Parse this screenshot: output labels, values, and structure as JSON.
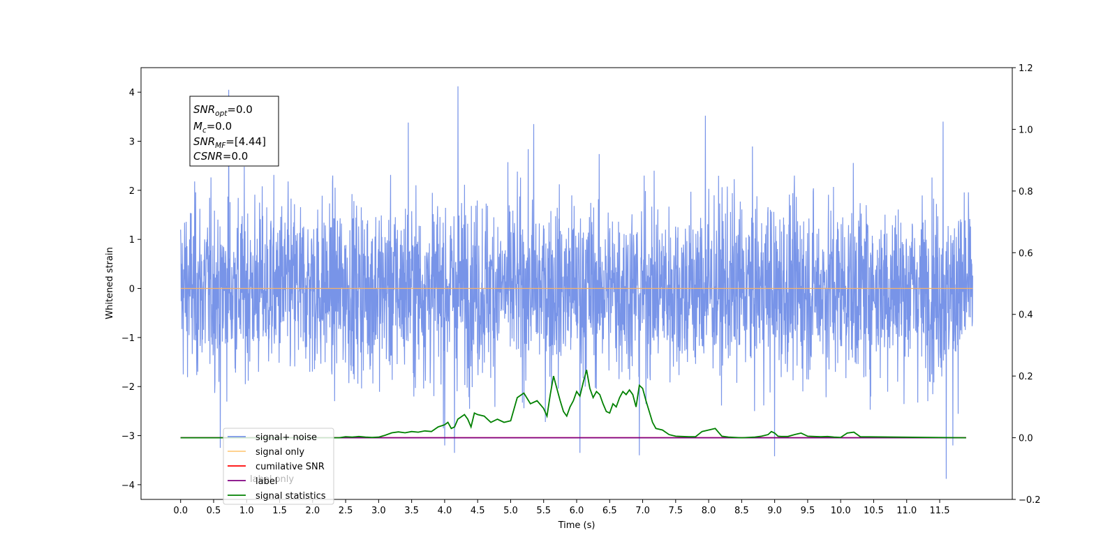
{
  "chart_data": {
    "type": "line",
    "xlabel": "Time (s)",
    "ylabel": "Whitened strain",
    "xlim": [
      -0.6,
      12.6
    ],
    "ylim_left": [
      -4.3,
      4.5
    ],
    "ylim_right": [
      -0.2,
      1.2
    ],
    "x_ticks": [
      0.0,
      0.5,
      1.0,
      1.5,
      2.0,
      2.5,
      3.0,
      3.5,
      4.0,
      4.5,
      5.0,
      5.5,
      6.0,
      6.5,
      7.0,
      7.5,
      8.0,
      8.5,
      9.0,
      9.5,
      10.0,
      10.5,
      11.0,
      11.5
    ],
    "x_tick_labels": [
      "0.0",
      "0.5",
      "1.0",
      "1.5",
      "2.0",
      "2.5",
      "3.0",
      "3.5",
      "4.0",
      "4.5",
      "5.0",
      "5.5",
      "6.0",
      "6.5",
      "7.0",
      "7.5",
      "8.0",
      "8.5",
      "9.0",
      "9.5",
      "10.0",
      "10.5",
      "11.0",
      "11.5"
    ],
    "y_left_ticks": [
      -4,
      -3,
      -2,
      -1,
      0,
      1,
      2,
      3,
      4
    ],
    "y_left_tick_labels": [
      "−4",
      "−3",
      "−2",
      "−1",
      "0",
      "1",
      "2",
      "3",
      "4"
    ],
    "y_right_ticks": [
      -0.2,
      0.0,
      0.2,
      0.4,
      0.6,
      0.8,
      1.0,
      1.2
    ],
    "y_right_tick_labels": [
      "−0.2",
      "0.0",
      "0.2",
      "0.4",
      "0.6",
      "0.8",
      "1.0",
      "1.2"
    ],
    "grid": false,
    "legend_position": "bottom-left",
    "noise_series": {
      "name": "signal+ noise",
      "axis": "left",
      "x_start": 0.0,
      "x_end": 12.0,
      "points": 3000,
      "std": 0.9,
      "peaks": [
        {
          "x": 0.73,
          "y": 4.05
        },
        {
          "x": 4.2,
          "y": 4.12
        },
        {
          "x": 7.95,
          "y": 3.52
        },
        {
          "x": 11.55,
          "y": 3.4
        },
        {
          "x": 5.35,
          "y": 3.35
        },
        {
          "x": 3.45,
          "y": 3.38
        }
      ],
      "troughs": [
        {
          "x": 0.6,
          "y": -3.25
        },
        {
          "x": 4.0,
          "y": -3.2
        },
        {
          "x": 4.15,
          "y": -3.35
        },
        {
          "x": 6.05,
          "y": -3.35
        },
        {
          "x": 6.95,
          "y": -3.4
        },
        {
          "x": 9.0,
          "y": -3.42
        },
        {
          "x": 11.6,
          "y": -3.88
        },
        {
          "x": 11.7,
          "y": -3.2
        }
      ]
    },
    "series": [
      {
        "name": "signal only",
        "axis": "left",
        "x": [
          0.0,
          12.0
        ],
        "y": [
          0.0,
          0.0
        ]
      },
      {
        "name": "cumilative SNR",
        "axis": "right",
        "x": [
          0.0,
          11.9
        ],
        "y": [
          0.0,
          0.0
        ]
      },
      {
        "name": "label",
        "axis": "right",
        "x": [
          0.0,
          11.9
        ],
        "y": [
          0.0,
          0.0
        ]
      },
      {
        "name": "signal statistics",
        "axis": "right",
        "x": [
          0.0,
          2.4,
          2.5,
          2.6,
          2.7,
          2.8,
          2.9,
          3.0,
          3.1,
          3.2,
          3.3,
          3.4,
          3.5,
          3.6,
          3.7,
          3.8,
          3.9,
          4.0,
          4.05,
          4.1,
          4.15,
          4.2,
          4.3,
          4.35,
          4.4,
          4.45,
          4.5,
          4.6,
          4.7,
          4.8,
          4.9,
          5.0,
          5.1,
          5.2,
          5.3,
          5.4,
          5.5,
          5.55,
          5.6,
          5.65,
          5.7,
          5.75,
          5.8,
          5.85,
          5.9,
          5.95,
          6.0,
          6.05,
          6.1,
          6.15,
          6.2,
          6.25,
          6.3,
          6.35,
          6.4,
          6.45,
          6.5,
          6.55,
          6.6,
          6.65,
          6.7,
          6.75,
          6.8,
          6.85,
          6.9,
          6.95,
          7.0,
          7.05,
          7.1,
          7.15,
          7.2,
          7.3,
          7.4,
          7.5,
          7.6,
          7.7,
          7.8,
          7.9,
          8.0,
          8.1,
          8.2,
          8.3,
          8.4,
          8.5,
          8.6,
          8.7,
          8.8,
          8.9,
          8.95,
          9.0,
          9.05,
          9.1,
          9.2,
          9.3,
          9.4,
          9.5,
          9.6,
          9.7,
          9.8,
          9.9,
          10.0,
          10.1,
          10.2,
          10.3,
          11.9
        ],
        "y": [
          0.0,
          0.0,
          0.003,
          0.002,
          0.004,
          0.002,
          0.001,
          0.002,
          0.008,
          0.016,
          0.019,
          0.016,
          0.02,
          0.018,
          0.022,
          0.02,
          0.035,
          0.042,
          0.05,
          0.03,
          0.035,
          0.06,
          0.075,
          0.06,
          0.035,
          0.08,
          0.075,
          0.07,
          0.05,
          0.06,
          0.05,
          0.055,
          0.13,
          0.145,
          0.11,
          0.12,
          0.095,
          0.07,
          0.14,
          0.2,
          0.16,
          0.12,
          0.085,
          0.07,
          0.1,
          0.12,
          0.15,
          0.135,
          0.18,
          0.22,
          0.16,
          0.13,
          0.15,
          0.14,
          0.11,
          0.085,
          0.08,
          0.11,
          0.1,
          0.13,
          0.15,
          0.14,
          0.155,
          0.14,
          0.1,
          0.17,
          0.16,
          0.12,
          0.085,
          0.05,
          0.03,
          0.025,
          0.01,
          0.005,
          0.004,
          0.003,
          0.003,
          0.02,
          0.025,
          0.03,
          0.005,
          0.002,
          0.001,
          0.0,
          0.001,
          0.002,
          0.005,
          0.01,
          0.02,
          0.015,
          0.005,
          0.004,
          0.004,
          0.01,
          0.015,
          0.005,
          0.004,
          0.003,
          0.004,
          0.002,
          0.001,
          0.015,
          0.018,
          0.003,
          0.0
        ]
      }
    ],
    "legend": [
      {
        "label": "signal+ noise",
        "color": "#7894e8"
      },
      {
        "label": "signal only",
        "color": "#ffcc80"
      },
      {
        "label": "cumilative SNR",
        "color": "#ff0000"
      },
      {
        "label": "label",
        "color": "#800080"
      },
      {
        "label": "signal statistics",
        "color": "#008000"
      }
    ],
    "hidden_legend_text": {
      "label": "label only"
    },
    "annotation": {
      "lines": [
        {
          "base": "SNR",
          "sub": "opt",
          "value": "=0.0"
        },
        {
          "base": "M",
          "sub": "c",
          "value": "=0.0"
        },
        {
          "base": "SNR",
          "sub": "MF",
          "value": "=[4.44]"
        },
        {
          "base": "CSNR",
          "sub": "",
          "value": "=0.0"
        }
      ]
    },
    "colors": {
      "noise": "#7894e8",
      "signal_only": "#f5b26b",
      "cumulative_snr": "#ff0000",
      "label": "#800080",
      "statistics": "#008000"
    }
  }
}
